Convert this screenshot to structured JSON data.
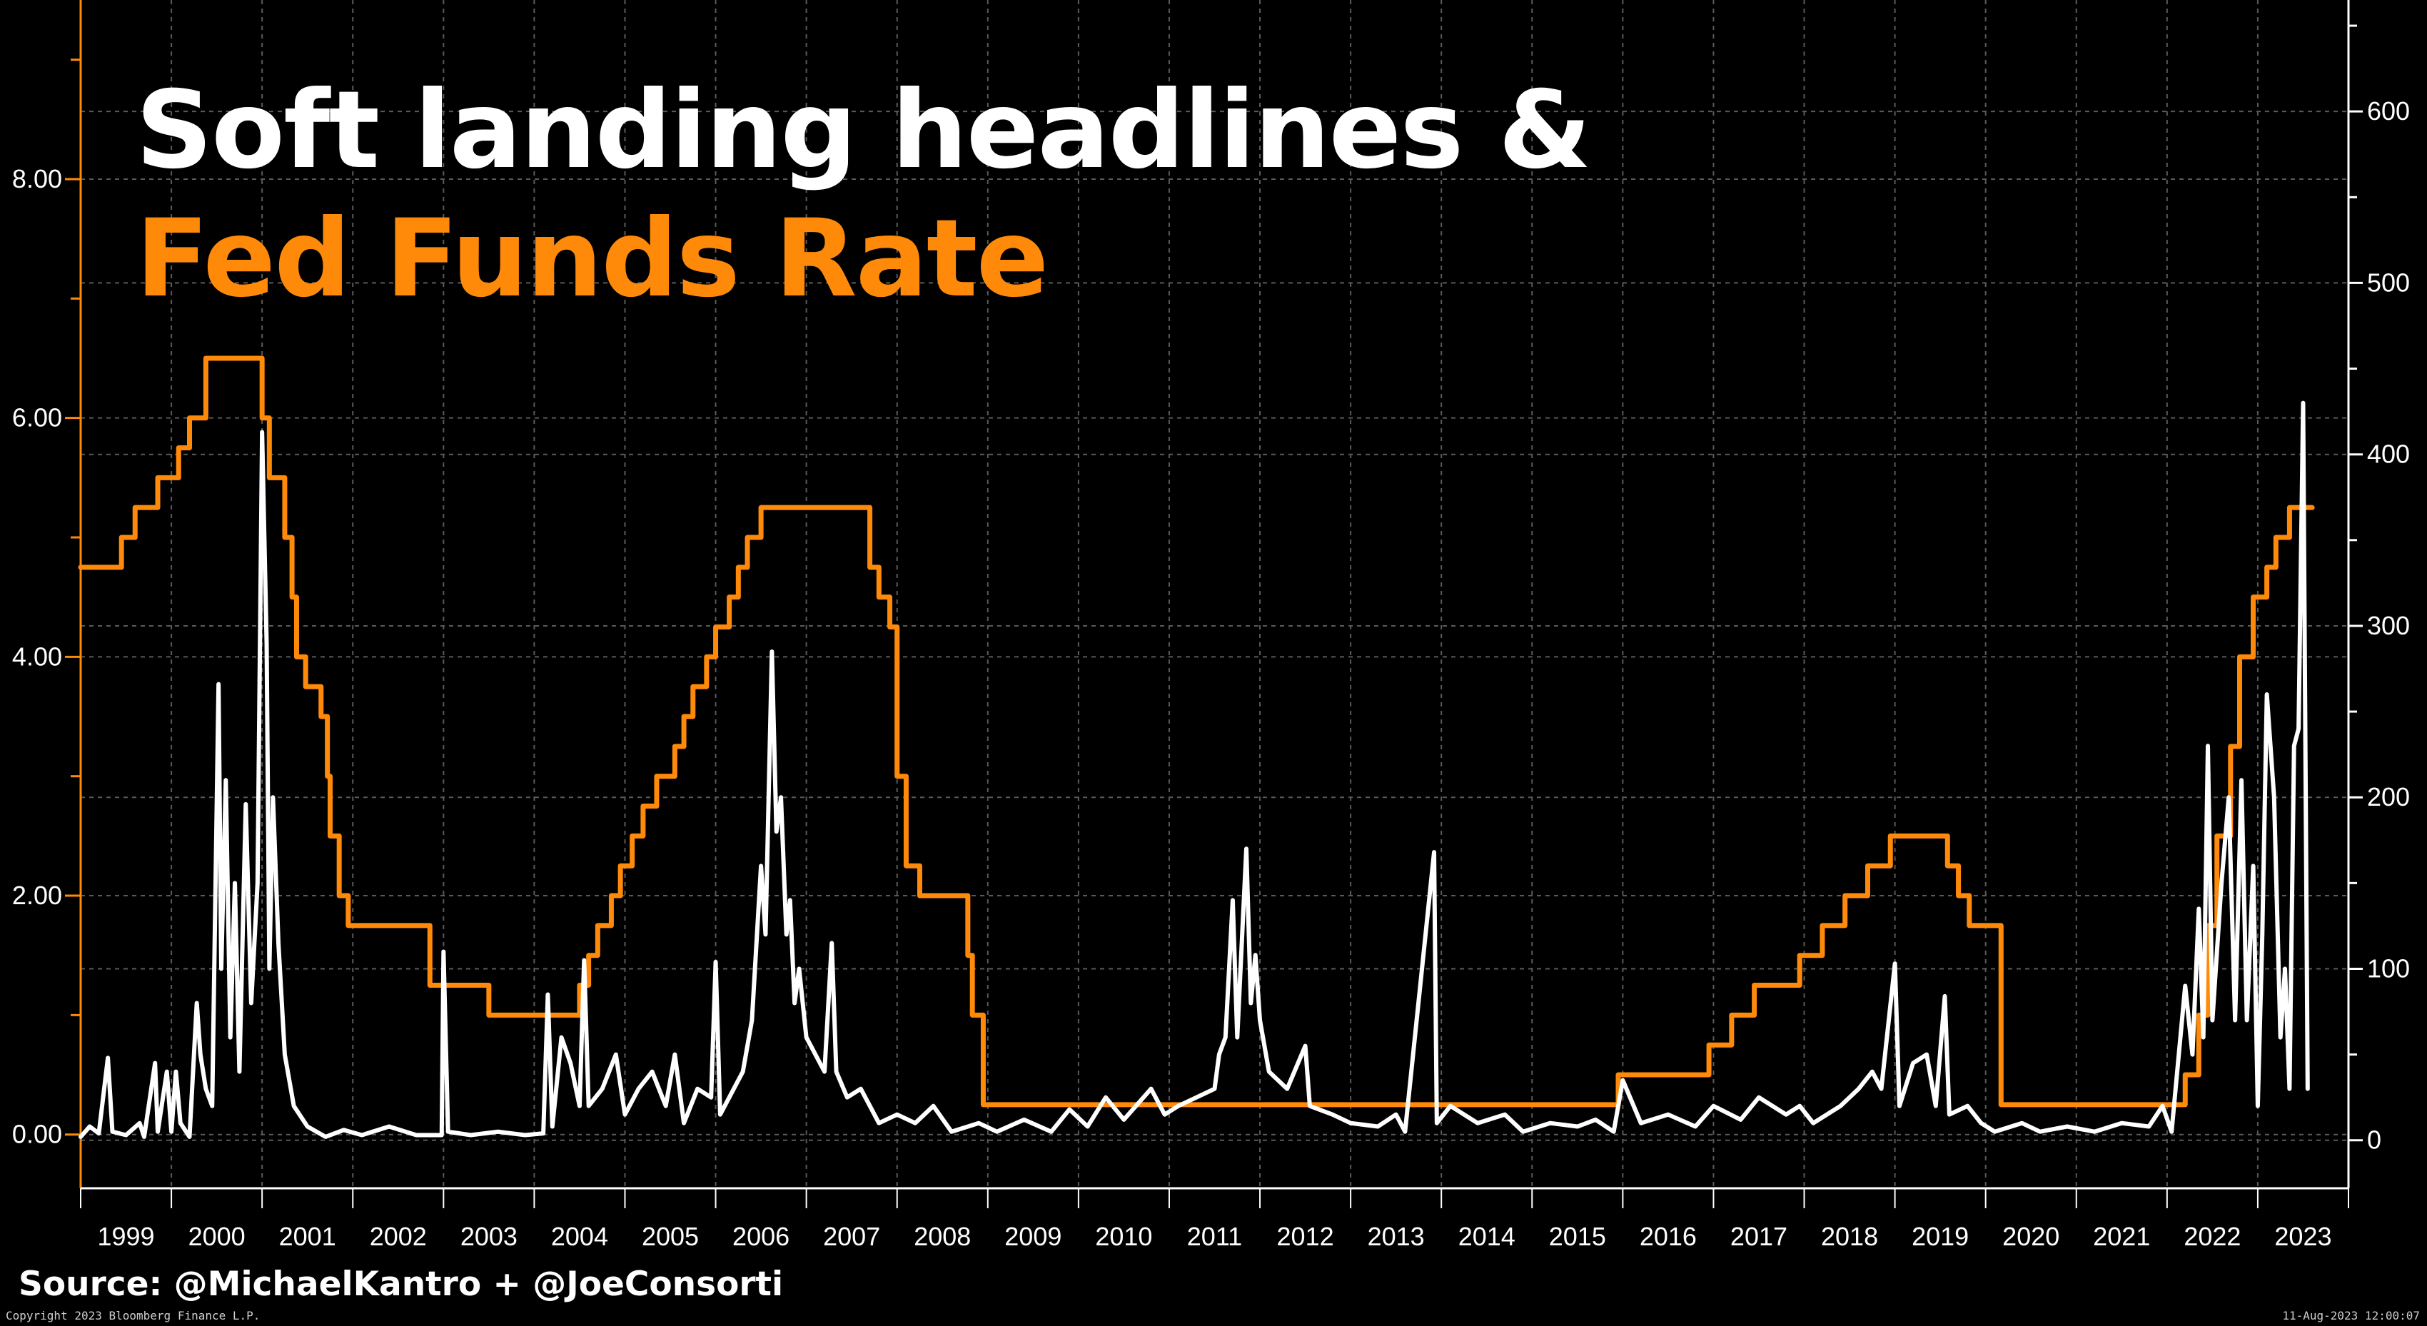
{
  "title_line1": "Soft landing headlines &",
  "title_line2": "Fed Funds Rate",
  "source": "Source: @MichaelKantro + @JoeConsorti",
  "copyright": "Copyright 2023 Bloomberg Finance L.P.",
  "timestamp": "11-Aug-2023 12:00:07",
  "colors": {
    "background": "#000000",
    "fed_funds": "#ff8a0a",
    "headlines": "#ffffff",
    "grid": "#5a5a5a"
  },
  "chart_data": {
    "type": "line",
    "x_axis": {
      "labels": [
        "1999",
        "2000",
        "2001",
        "2002",
        "2003",
        "2004",
        "2005",
        "2006",
        "2007",
        "2008",
        "2009",
        "2010",
        "2011",
        "2012",
        "2013",
        "2014",
        "2015",
        "2016",
        "2017",
        "2018",
        "2019",
        "2020",
        "2021",
        "2022",
        "2023"
      ],
      "range": [
        1999.0,
        2024.0
      ]
    },
    "left_axis": {
      "ticks": [
        "0.00",
        "2.00",
        "4.00",
        "6.00",
        "8.00"
      ],
      "range": [
        -0.45,
        9.5
      ],
      "tick_values": [
        0,
        2,
        4,
        6,
        8
      ]
    },
    "right_axis": {
      "ticks": [
        "0",
        "100",
        "200",
        "300",
        "400",
        "500",
        "600"
      ],
      "range": [
        -28,
        665
      ],
      "tick_values": [
        0,
        100,
        200,
        300,
        400,
        500,
        600
      ]
    },
    "grid": true,
    "series": [
      {
        "axis": "left",
        "color": "#ff8a0a",
        "step": true,
        "points": [
          [
            1999.0,
            4.75
          ],
          [
            1999.45,
            5.0
          ],
          [
            1999.6,
            5.25
          ],
          [
            1999.85,
            5.5
          ],
          [
            2000.08,
            5.75
          ],
          [
            2000.2,
            6.0
          ],
          [
            2000.38,
            6.5
          ],
          [
            2001.0,
            6.0
          ],
          [
            2001.08,
            5.5
          ],
          [
            2001.25,
            5.0
          ],
          [
            2001.33,
            4.5
          ],
          [
            2001.38,
            4.0
          ],
          [
            2001.48,
            3.75
          ],
          [
            2001.65,
            3.5
          ],
          [
            2001.72,
            3.0
          ],
          [
            2001.75,
            2.5
          ],
          [
            2001.85,
            2.0
          ],
          [
            2001.95,
            1.75
          ],
          [
            2002.85,
            1.25
          ],
          [
            2003.5,
            1.0
          ],
          [
            2004.5,
            1.25
          ],
          [
            2004.6,
            1.5
          ],
          [
            2004.7,
            1.75
          ],
          [
            2004.85,
            2.0
          ],
          [
            2004.95,
            2.25
          ],
          [
            2005.08,
            2.5
          ],
          [
            2005.2,
            2.75
          ],
          [
            2005.35,
            3.0
          ],
          [
            2005.55,
            3.25
          ],
          [
            2005.65,
            3.5
          ],
          [
            2005.75,
            3.75
          ],
          [
            2005.9,
            4.0
          ],
          [
            2006.0,
            4.25
          ],
          [
            2006.15,
            4.5
          ],
          [
            2006.25,
            4.75
          ],
          [
            2006.35,
            5.0
          ],
          [
            2006.5,
            5.25
          ],
          [
            2007.7,
            4.75
          ],
          [
            2007.8,
            4.5
          ],
          [
            2007.92,
            4.25
          ],
          [
            2008.0,
            3.0
          ],
          [
            2008.1,
            2.25
          ],
          [
            2008.25,
            2.0
          ],
          [
            2008.78,
            1.5
          ],
          [
            2008.83,
            1.0
          ],
          [
            2008.95,
            0.25
          ],
          [
            2015.95,
            0.5
          ],
          [
            2016.95,
            0.75
          ],
          [
            2017.2,
            1.0
          ],
          [
            2017.45,
            1.25
          ],
          [
            2017.95,
            1.5
          ],
          [
            2018.2,
            1.75
          ],
          [
            2018.45,
            2.0
          ],
          [
            2018.7,
            2.25
          ],
          [
            2018.95,
            2.5
          ],
          [
            2019.58,
            2.25
          ],
          [
            2019.7,
            2.0
          ],
          [
            2019.82,
            1.75
          ],
          [
            2020.17,
            0.25
          ],
          [
            2022.2,
            0.5
          ],
          [
            2022.35,
            1.0
          ],
          [
            2022.45,
            1.75
          ],
          [
            2022.55,
            2.5
          ],
          [
            2022.7,
            3.25
          ],
          [
            2022.8,
            4.0
          ],
          [
            2022.95,
            4.5
          ],
          [
            2023.1,
            4.75
          ],
          [
            2023.2,
            5.0
          ],
          [
            2023.35,
            5.25
          ],
          [
            2023.6,
            5.25
          ]
        ]
      },
      {
        "axis": "right",
        "color": "#ffffff",
        "step": false,
        "points": [
          [
            1999.0,
            2
          ],
          [
            1999.1,
            8
          ],
          [
            1999.2,
            4
          ],
          [
            1999.3,
            48
          ],
          [
            1999.35,
            5
          ],
          [
            1999.5,
            3
          ],
          [
            1999.65,
            10
          ],
          [
            1999.7,
            2
          ],
          [
            1999.82,
            45
          ],
          [
            1999.85,
            5
          ],
          [
            1999.95,
            40
          ],
          [
            2000.0,
            5
          ],
          [
            2000.05,
            40
          ],
          [
            2000.1,
            10
          ],
          [
            2000.2,
            2
          ],
          [
            2000.28,
            80
          ],
          [
            2000.32,
            50
          ],
          [
            2000.38,
            30
          ],
          [
            2000.45,
            20
          ],
          [
            2000.52,
            266
          ],
          [
            2000.55,
            100
          ],
          [
            2000.6,
            210
          ],
          [
            2000.65,
            60
          ],
          [
            2000.7,
            150
          ],
          [
            2000.75,
            40
          ],
          [
            2000.82,
            196
          ],
          [
            2000.88,
            80
          ],
          [
            2000.95,
            150
          ],
          [
            2001.0,
            413
          ],
          [
            2001.05,
            290
          ],
          [
            2001.08,
            100
          ],
          [
            2001.12,
            200
          ],
          [
            2001.18,
            115
          ],
          [
            2001.25,
            50
          ],
          [
            2001.35,
            20
          ],
          [
            2001.5,
            8
          ],
          [
            2001.7,
            2
          ],
          [
            2001.9,
            6
          ],
          [
            2002.1,
            3
          ],
          [
            2002.4,
            8
          ],
          [
            2002.7,
            3
          ],
          [
            2002.98,
            3
          ],
          [
            2003.0,
            110
          ],
          [
            2003.05,
            5
          ],
          [
            2003.3,
            3
          ],
          [
            2003.6,
            5
          ],
          [
            2003.9,
            3
          ],
          [
            2004.1,
            4
          ],
          [
            2004.15,
            85
          ],
          [
            2004.2,
            8
          ],
          [
            2004.3,
            60
          ],
          [
            2004.4,
            45
          ],
          [
            2004.5,
            20
          ],
          [
            2004.55,
            105
          ],
          [
            2004.6,
            20
          ],
          [
            2004.75,
            30
          ],
          [
            2004.9,
            50
          ],
          [
            2005.0,
            15
          ],
          [
            2005.15,
            30
          ],
          [
            2005.3,
            40
          ],
          [
            2005.45,
            20
          ],
          [
            2005.55,
            50
          ],
          [
            2005.65,
            10
          ],
          [
            2005.8,
            30
          ],
          [
            2005.95,
            25
          ],
          [
            2006.0,
            104
          ],
          [
            2006.05,
            15
          ],
          [
            2006.2,
            30
          ],
          [
            2006.3,
            40
          ],
          [
            2006.4,
            70
          ],
          [
            2006.5,
            160
          ],
          [
            2006.55,
            120
          ],
          [
            2006.62,
            285
          ],
          [
            2006.67,
            180
          ],
          [
            2006.72,
            200
          ],
          [
            2006.78,
            120
          ],
          [
            2006.82,
            140
          ],
          [
            2006.87,
            80
          ],
          [
            2006.92,
            100
          ],
          [
            2007.0,
            60
          ],
          [
            2007.1,
            50
          ],
          [
            2007.2,
            40
          ],
          [
            2007.28,
            115
          ],
          [
            2007.33,
            40
          ],
          [
            2007.45,
            25
          ],
          [
            2007.6,
            30
          ],
          [
            2007.8,
            10
          ],
          [
            2008.0,
            15
          ],
          [
            2008.2,
            10
          ],
          [
            2008.4,
            20
          ],
          [
            2008.6,
            5
          ],
          [
            2008.9,
            10
          ],
          [
            2009.1,
            5
          ],
          [
            2009.4,
            12
          ],
          [
            2009.7,
            5
          ],
          [
            2009.9,
            18
          ],
          [
            2010.1,
            8
          ],
          [
            2010.3,
            25
          ],
          [
            2010.5,
            12
          ],
          [
            2010.8,
            30
          ],
          [
            2010.95,
            15
          ],
          [
            2011.1,
            20
          ],
          [
            2011.3,
            25
          ],
          [
            2011.5,
            30
          ],
          [
            2011.55,
            50
          ],
          [
            2011.62,
            60
          ],
          [
            2011.7,
            140
          ],
          [
            2011.75,
            60
          ],
          [
            2011.85,
            170
          ],
          [
            2011.9,
            80
          ],
          [
            2011.95,
            108
          ],
          [
            2012.0,
            70
          ],
          [
            2012.1,
            40
          ],
          [
            2012.3,
            30
          ],
          [
            2012.5,
            55
          ],
          [
            2012.55,
            20
          ],
          [
            2012.8,
            15
          ],
          [
            2013.0,
            10
          ],
          [
            2013.3,
            8
          ],
          [
            2013.5,
            15
          ],
          [
            2013.6,
            5
          ],
          [
            2013.92,
            168
          ],
          [
            2013.95,
            10
          ],
          [
            2014.1,
            20
          ],
          [
            2014.4,
            10
          ],
          [
            2014.7,
            15
          ],
          [
            2014.9,
            5
          ],
          [
            2015.2,
            10
          ],
          [
            2015.5,
            8
          ],
          [
            2015.7,
            12
          ],
          [
            2015.9,
            5
          ],
          [
            2016.0,
            35
          ],
          [
            2016.2,
            10
          ],
          [
            2016.5,
            15
          ],
          [
            2016.8,
            8
          ],
          [
            2017.0,
            20
          ],
          [
            2017.3,
            12
          ],
          [
            2017.5,
            25
          ],
          [
            2017.8,
            15
          ],
          [
            2017.95,
            20
          ],
          [
            2018.1,
            10
          ],
          [
            2018.4,
            20
          ],
          [
            2018.6,
            30
          ],
          [
            2018.75,
            40
          ],
          [
            2018.85,
            30
          ],
          [
            2019.0,
            103
          ],
          [
            2019.05,
            20
          ],
          [
            2019.2,
            45
          ],
          [
            2019.35,
            50
          ],
          [
            2019.45,
            20
          ],
          [
            2019.55,
            84
          ],
          [
            2019.6,
            15
          ],
          [
            2019.8,
            20
          ],
          [
            2019.95,
            10
          ],
          [
            2020.1,
            5
          ],
          [
            2020.4,
            10
          ],
          [
            2020.6,
            5
          ],
          [
            2020.9,
            8
          ],
          [
            2021.2,
            5
          ],
          [
            2021.5,
            10
          ],
          [
            2021.8,
            8
          ],
          [
            2021.95,
            20
          ],
          [
            2022.05,
            5
          ],
          [
            2022.2,
            90
          ],
          [
            2022.28,
            50
          ],
          [
            2022.35,
            135
          ],
          [
            2022.4,
            60
          ],
          [
            2022.45,
            230
          ],
          [
            2022.5,
            70
          ],
          [
            2022.6,
            150
          ],
          [
            2022.68,
            200
          ],
          [
            2022.75,
            70
          ],
          [
            2022.82,
            210
          ],
          [
            2022.88,
            70
          ],
          [
            2022.95,
            160
          ],
          [
            2023.0,
            20
          ],
          [
            2023.05,
            120
          ],
          [
            2023.1,
            260
          ],
          [
            2023.18,
            200
          ],
          [
            2023.25,
            60
          ],
          [
            2023.3,
            100
          ],
          [
            2023.35,
            30
          ],
          [
            2023.4,
            230
          ],
          [
            2023.45,
            240
          ],
          [
            2023.5,
            430
          ],
          [
            2023.55,
            30
          ]
        ]
      }
    ]
  }
}
